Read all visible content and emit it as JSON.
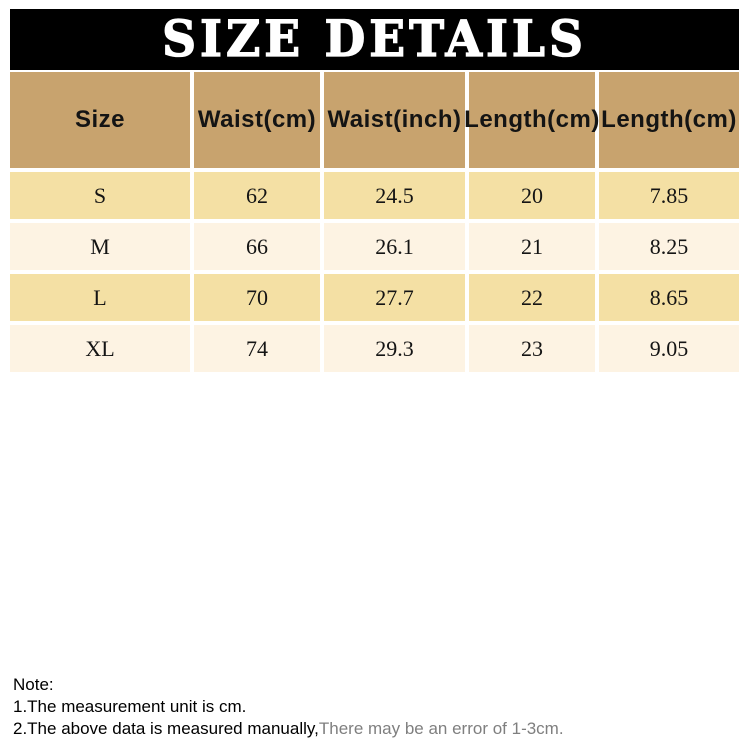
{
  "title": "SIZE DETAILS",
  "colors": {
    "title_bar_bg": "#000000",
    "title_text": "#ffffff",
    "header_row_bg": "#C8A36E",
    "row_odd_bg": "#F4E0A4",
    "row_even_bg": "#FDF3E3",
    "table_text": "#141414",
    "note_gray": "#7F7F7F"
  },
  "chart_data": {
    "type": "table",
    "title": "SIZE DETAILS",
    "columns": [
      "Size",
      "Waist(cm)",
      "Waist(inch)",
      "Length(cm)",
      "Length(cm)"
    ],
    "rows": [
      [
        "S",
        62,
        24.5,
        20,
        7.85
      ],
      [
        "M",
        66,
        26.1,
        21,
        8.25
      ],
      [
        "L",
        70,
        27.7,
        22,
        8.65
      ],
      [
        "XL",
        74,
        29.3,
        23,
        9.05
      ]
    ],
    "notes": [
      "1.The measurement unit is cm.",
      "2.The above data is measured manually,There may be an error of 1-3cm."
    ]
  },
  "note": {
    "heading": "Note:",
    "line1": "1.The measurement unit is cm.",
    "line2_black": "2.The above data is measured manually,",
    "line2_gray": "There may be an error of 1-3cm."
  }
}
